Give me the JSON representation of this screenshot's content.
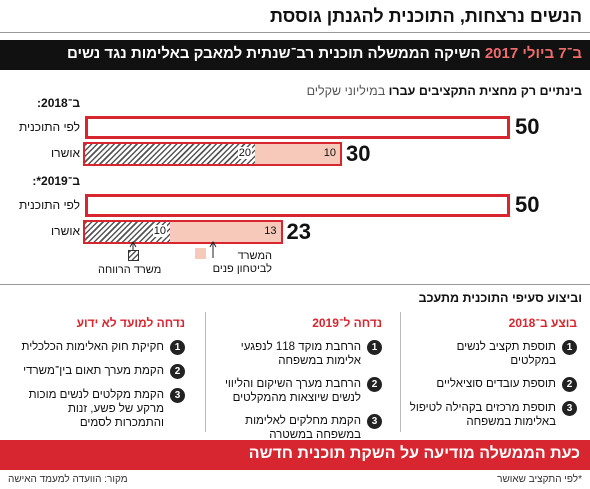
{
  "header": {
    "title": "הנשים נרצחות, התוכנית להגנתן גוססת",
    "banner_date": "ב־7 ביולי 2017",
    "banner_text": "השיקה הממשלה תוכנית רב־שנתית למאבק באלימות נגד נשים"
  },
  "chart_data": {
    "type": "bar",
    "orientation": "horizontal",
    "stacked": true,
    "title": "בינתיים רק מחצית התקציבים עברו",
    "subtitle": "במיליוני שקלים",
    "groups": [
      "ב־2018:",
      "ב־2019*:"
    ],
    "row_labels": [
      "לפי התוכנית",
      "אושרו"
    ],
    "planned": {
      "color": "#d7262f",
      "values": [
        50,
        50
      ]
    },
    "series": [
      {
        "name": "משרד הרווחה",
        "pattern": "hatch",
        "color": "#555555",
        "values": [
          20,
          10
        ]
      },
      {
        "name": "המשרד לביטחון פנים",
        "color": "#f7c9bb",
        "values": [
          10,
          13
        ]
      }
    ],
    "approved_totals": [
      30,
      23
    ]
  },
  "progress": {
    "title": "וביצוע סעיפי התוכנית מתעכב",
    "columns": [
      {
        "title": "בוצע ב־2018",
        "items": [
          {
            "number": 1,
            "text": "תוספת תקציב לנשים במקלטים"
          },
          {
            "number": 2,
            "text": "תוספת עובדים סוציאליים"
          },
          {
            "number": 3,
            "text": "תוספת מרכזים בקהילה לטיפול באלימות במשפחה"
          }
        ]
      },
      {
        "title": "נדחה ל־2019",
        "items": [
          {
            "number": 1,
            "text": "הרחבת מוקד 118 לנפגעי אלימות במשפחה"
          },
          {
            "number": 2,
            "text": "הרחבת מערך השיקום והליווי לנשים שיוצאות מהמקלטים"
          },
          {
            "number": 3,
            "text": "הקמת מחלקים לאלימות במשפחה במשטרה"
          }
        ]
      },
      {
        "title": "נדחה למועד לא ידוע",
        "items": [
          {
            "number": 1,
            "text": "חקיקת חוק האלימות הכלכלית"
          },
          {
            "number": 2,
            "text": "הקמת מערך תאום בין־משרדי"
          },
          {
            "number": 3,
            "text": "הקמת מקלטים לנשים מוכות מרקע של פשע, זנות והתמכרות לסמים"
          }
        ]
      }
    ]
  },
  "footer": {
    "banner": "כעת הממשלה מודיעה על השקת תוכנית חדשה",
    "note": "*לפי התקציב שאושר",
    "source": "מקור: הוועדה למעמד האישה"
  }
}
